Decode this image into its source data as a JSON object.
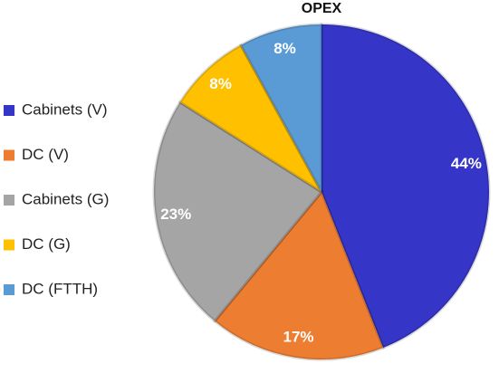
{
  "chart_data": {
    "type": "pie",
    "title": "OPEX",
    "categories": [
      "Cabinets (V)",
      "DC (V)",
      "Cabinets (G)",
      "DC (G)",
      "DC (FTTH)"
    ],
    "values": [
      44,
      17,
      23,
      8,
      8
    ],
    "value_labels": [
      "44%",
      "17%",
      "23%",
      "8%",
      "8%"
    ],
    "colors": [
      "#3535c8",
      "#ed7d31",
      "#a5a5a5",
      "#ffc000",
      "#5b9bd5"
    ],
    "legend": "left"
  }
}
